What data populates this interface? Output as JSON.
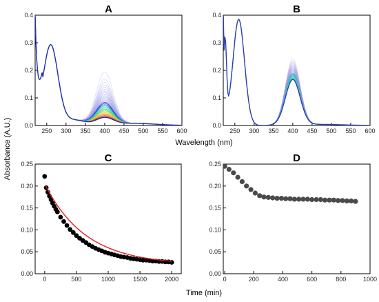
{
  "figure": {
    "xlabel_top": "Wavelength (nm)",
    "xlabel_bottom": "Time (min)",
    "ylabel": "Absorbance (A.U.)"
  },
  "chart_data": [
    {
      "id": "A",
      "type": "line",
      "title": "A",
      "xlim": [
        220,
        600
      ],
      "ylim": [
        0,
        0.4
      ],
      "xticks": [
        250,
        300,
        350,
        400,
        450,
        500,
        550,
        600
      ],
      "yticks": [
        0.0,
        0.1,
        0.2,
        0.3,
        0.4
      ],
      "ytick_labels": [
        "0.0",
        "0.1",
        "0.2",
        "0.3",
        "0.4"
      ],
      "spectra": {
        "count": 30,
        "uv_peak_nm": 260,
        "uv_peak_abs": 0.29,
        "soret_peak_nm": 400,
        "soret_peak_first": 0.19,
        "soret_peak_last": 0.025
      }
    },
    {
      "id": "B",
      "type": "line",
      "title": "B",
      "xlim": [
        220,
        600
      ],
      "ylim": [
        0,
        0.4
      ],
      "xticks": [
        250,
        300,
        350,
        400,
        450,
        500,
        550,
        600
      ],
      "yticks": [
        0.0,
        0.1,
        0.2,
        0.3,
        0.4
      ],
      "ytick_labels": [
        "0.0",
        "0.1",
        "0.2",
        "0.3",
        "0.4"
      ],
      "spectra": {
        "count": 25,
        "uv_peak_nm": 260,
        "uv_peak_abs": 0.385,
        "soret_peak_nm": 400,
        "soret_peak_first": 0.24,
        "soret_peak_last": 0.165
      }
    },
    {
      "id": "C",
      "type": "scatter",
      "title": "C",
      "xlim": [
        -150,
        2150
      ],
      "ylim": [
        0,
        0.25
      ],
      "xticks": [
        0,
        500,
        1000,
        1500,
        2000
      ],
      "yticks": [
        0.0,
        0.05,
        0.1,
        0.15,
        0.2,
        0.25
      ],
      "ytick_labels": [
        "0.00",
        "0.05",
        "0.10",
        "0.15",
        "0.20",
        "0.25"
      ],
      "x": [
        0,
        25,
        50,
        75,
        100,
        125,
        150,
        175,
        200,
        250,
        300,
        350,
        400,
        450,
        500,
        550,
        600,
        650,
        700,
        750,
        800,
        850,
        900,
        950,
        1000,
        1050,
        1100,
        1150,
        1200,
        1250,
        1300,
        1350,
        1400,
        1450,
        1500,
        1550,
        1600,
        1650,
        1700,
        1750,
        1800,
        1850,
        1900,
        1950,
        2000
      ],
      "y": [
        0.222,
        0.196,
        0.186,
        0.177,
        0.169,
        0.161,
        0.154,
        0.147,
        0.141,
        0.129,
        0.119,
        0.11,
        0.101,
        0.094,
        0.087,
        0.081,
        0.076,
        0.071,
        0.066,
        0.062,
        0.058,
        0.055,
        0.052,
        0.049,
        0.047,
        0.045,
        0.043,
        0.041,
        0.039,
        0.038,
        0.037,
        0.035,
        0.034,
        0.033,
        0.032,
        0.031,
        0.031,
        0.03,
        0.029,
        0.029,
        0.028,
        0.028,
        0.027,
        0.027,
        0.026
      ],
      "fit": {
        "A": 0.185,
        "k": 0.00155,
        "c": 0.02
      }
    },
    {
      "id": "D",
      "type": "scatter",
      "title": "D",
      "xlim": [
        -10,
        1000
      ],
      "ylim": [
        0,
        0.25
      ],
      "xticks": [
        0,
        200,
        400,
        600,
        800,
        1000
      ],
      "yticks": [
        0.0,
        0.05,
        0.1,
        0.15,
        0.2,
        0.25
      ],
      "ytick_labels": [
        "0.00",
        "0.05",
        "0.10",
        "0.15",
        "0.20",
        "0.25"
      ],
      "x": [
        0,
        30,
        60,
        90,
        120,
        150,
        180,
        210,
        240,
        270,
        300,
        330,
        360,
        390,
        420,
        450,
        480,
        510,
        540,
        570,
        600,
        630,
        660,
        690,
        720,
        750,
        780,
        810,
        840,
        870,
        900
      ],
      "y": [
        0.245,
        0.238,
        0.23,
        0.22,
        0.21,
        0.2,
        0.192,
        0.184,
        0.178,
        0.175,
        0.174,
        0.173,
        0.172,
        0.172,
        0.171,
        0.171,
        0.17,
        0.17,
        0.17,
        0.17,
        0.169,
        0.169,
        0.169,
        0.168,
        0.168,
        0.168,
        0.167,
        0.167,
        0.166,
        0.166,
        0.165
      ]
    }
  ]
}
